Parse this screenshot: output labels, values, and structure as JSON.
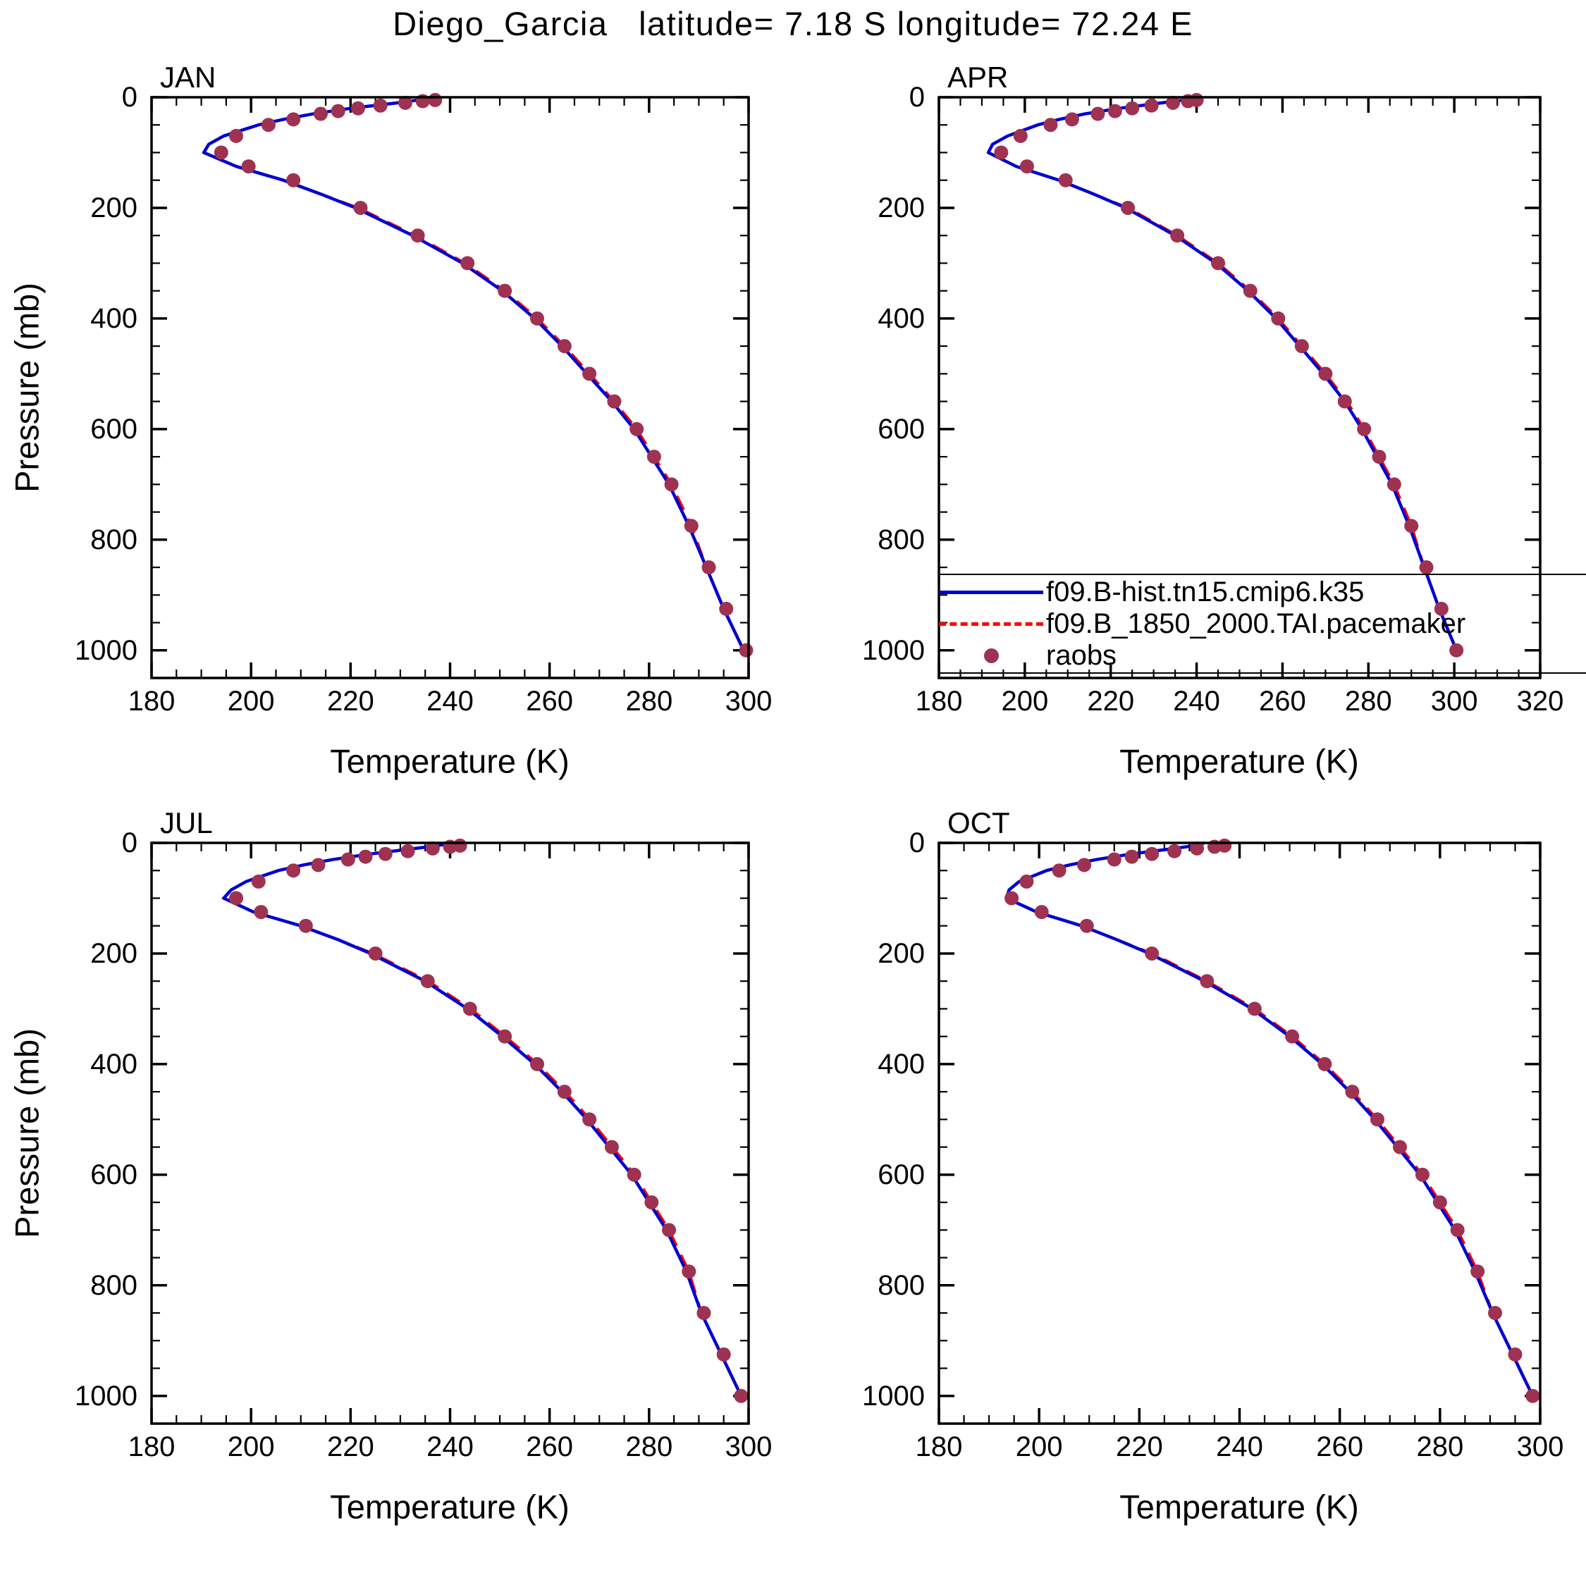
{
  "chart_data": {
    "type": "line",
    "title": "Diego_Garcia   latitude= 7.18 S longitude= 72.24 E",
    "xlabel": "Temperature (K)",
    "ylabel": "Pressure (mb)",
    "grid": false,
    "y_axis": {
      "min": 0,
      "max": 1050,
      "inverted": true,
      "ticks": [
        0,
        200,
        400,
        600,
        800,
        1000
      ],
      "minor_step": 50
    },
    "x_minor_step": 5,
    "colors": {
      "model": "#0000d0",
      "pacemaker": "#ff0000",
      "raobs": "#9e3250",
      "axis": "#000000"
    },
    "legend": {
      "position": "inside-apr-panel-bottom",
      "entries": [
        {
          "id": "model",
          "label": "f09.B-hist.tn15.cmip6.k35",
          "style": "solid-line",
          "color": "#0000d0"
        },
        {
          "id": "pacemaker",
          "label": "f09.B_1850_2000.TAI.pacemaker",
          "style": "dashed-line",
          "color": "#ff0000"
        },
        {
          "id": "raobs",
          "label": "raobs",
          "style": "filled-circle",
          "color": "#9e3250"
        }
      ]
    },
    "panels": [
      {
        "label": "JAN",
        "xlim": [
          180,
          300
        ],
        "xticks": [
          180,
          200,
          220,
          240,
          260,
          280,
          300
        ],
        "series": {
          "model": {
            "pressure": [
              0,
              5,
              10,
              20,
              30,
              40,
              50,
              70,
              85,
              100,
              125,
              150,
              175,
              200,
              250,
              300,
              350,
              400,
              450,
              500,
              550,
              600,
              650,
              700,
              775,
              850,
              925,
              1000
            ],
            "temperature": [
              235.5,
              233.5,
              229.5,
              220,
              212.5,
              206.5,
              201.5,
              194.5,
              191.5,
              190.5,
              197,
              206.5,
              214,
              221,
              232.5,
              242.5,
              250.5,
              257,
              262.5,
              267.5,
              272.5,
              277,
              280.5,
              284,
              288,
              291.5,
              295,
              299
            ]
          },
          "pacemaker": {
            "pressure": [
              0,
              5,
              10,
              20,
              30,
              40,
              50,
              70,
              85,
              100,
              125,
              150,
              175,
              200,
              250,
              300,
              350,
              400,
              450,
              500,
              550,
              600,
              650,
              700,
              775,
              850,
              925,
              1000
            ],
            "temperature": [
              235.5,
              233.5,
              229.5,
              220,
              212.5,
              206.5,
              201.5,
              194.5,
              191.5,
              190.5,
              197,
              206.5,
              214,
              221.5,
              233,
              243,
              251,
              257.5,
              263,
              268,
              273,
              277.5,
              281,
              284.5,
              288.5,
              291.5,
              295,
              299
            ]
          },
          "raobs": {
            "pressure": [
              5,
              7,
              10,
              15,
              20,
              25,
              30,
              40,
              50,
              70,
              100,
              125,
              150,
              200,
              250,
              300,
              350,
              400,
              450,
              500,
              550,
              600,
              650,
              700,
              775,
              850,
              925,
              1000
            ],
            "temperature": [
              237,
              234.5,
              231,
              226,
              221.5,
              217.5,
              214,
              208.5,
              203.5,
              197,
              194,
              199.5,
              208.5,
              222,
              233.5,
              243.5,
              251,
              257.5,
              263,
              268,
              273,
              277.5,
              281,
              284.5,
              288.5,
              292,
              295.5,
              299.5
            ]
          }
        }
      },
      {
        "label": "APR",
        "xlim": [
          180,
          320
        ],
        "xticks": [
          180,
          200,
          220,
          240,
          260,
          280,
          300,
          320
        ],
        "series": {
          "model": {
            "pressure": [
              0,
              5,
              10,
              20,
              30,
              40,
              50,
              70,
              85,
              100,
              125,
              150,
              175,
              200,
              250,
              300,
              350,
              400,
              450,
              500,
              550,
              600,
              650,
              700,
              775,
              850,
              925,
              1000
            ],
            "temperature": [
              240,
              237,
              232,
              222,
              214,
              208,
              203,
              196,
              192.5,
              191.5,
              198,
              208,
              216,
              223.5,
              235,
              244.5,
              252,
              258.5,
              264,
              269.5,
              274.5,
              278.5,
              282,
              285.5,
              289.5,
              293,
              296.5,
              300.5
            ]
          },
          "pacemaker": {
            "pressure": [
              0,
              5,
              10,
              20,
              30,
              40,
              50,
              70,
              85,
              100,
              125,
              150,
              175,
              200,
              250,
              300,
              350,
              400,
              450,
              500,
              550,
              600,
              650,
              700,
              775,
              850,
              925,
              1000
            ],
            "temperature": [
              240,
              237,
              232,
              222,
              214,
              208,
              203,
              196,
              192.5,
              191.5,
              198,
              208,
              216,
              224,
              235.5,
              245,
              252.5,
              259,
              264.5,
              270,
              275,
              279,
              282.5,
              286,
              290,
              293,
              296.5,
              300.5
            ]
          },
          "raobs": {
            "pressure": [
              5,
              7,
              10,
              15,
              20,
              25,
              30,
              40,
              50,
              70,
              100,
              125,
              150,
              200,
              250,
              300,
              350,
              400,
              450,
              500,
              550,
              600,
              650,
              700,
              775,
              850,
              925,
              1000
            ],
            "temperature": [
              240,
              238,
              234.5,
              229.5,
              225,
              221,
              217,
              211,
              206,
              199,
              194.5,
              200.5,
              209.5,
              224,
              235.5,
              245,
              252.5,
              259,
              264.5,
              270,
              274.5,
              279,
              282.5,
              286,
              290,
              293.5,
              297,
              300.5
            ]
          }
        }
      },
      {
        "label": "JUL",
        "xlim": [
          180,
          300
        ],
        "xticks": [
          180,
          200,
          220,
          240,
          260,
          280,
          300
        ],
        "series": {
          "model": {
            "pressure": [
              0,
              5,
              10,
              20,
              30,
              40,
              50,
              70,
              85,
              100,
              125,
              150,
              175,
              200,
              250,
              300,
              350,
              400,
              450,
              500,
              550,
              600,
              650,
              700,
              775,
              850,
              925,
              1000
            ],
            "temperature": [
              240.5,
              237.5,
              233,
              224,
              216.5,
              210.5,
              205.5,
              199,
              196,
              194.5,
              200.5,
              210,
              217.5,
              224,
              235,
              243.5,
              250.5,
              257,
              262.5,
              267.5,
              272,
              276.5,
              280,
              283.5,
              287.5,
              290.5,
              294.5,
              298.5
            ]
          },
          "pacemaker": {
            "pressure": [
              0,
              5,
              10,
              20,
              30,
              40,
              50,
              70,
              85,
              100,
              125,
              150,
              175,
              200,
              250,
              300,
              350,
              400,
              450,
              500,
              550,
              600,
              650,
              700,
              775,
              850,
              925,
              1000
            ],
            "temperature": [
              240.5,
              237.5,
              233,
              224,
              216.5,
              210.5,
              205.5,
              199,
              196,
              194.5,
              200.5,
              210,
              217.5,
              224.5,
              235.6,
              244.1,
              251.1,
              257.6,
              263.1,
              268.1,
              272.6,
              277.1,
              280.5,
              284,
              288,
              290.5,
              294.5,
              298.5
            ]
          },
          "raobs": {
            "pressure": [
              5,
              7,
              10,
              15,
              20,
              25,
              30,
              40,
              50,
              70,
              100,
              125,
              150,
              200,
              250,
              300,
              350,
              400,
              450,
              500,
              550,
              600,
              650,
              700,
              775,
              850,
              925,
              1000
            ],
            "temperature": [
              242,
              240,
              236.5,
              231.5,
              227,
              223,
              219.5,
              213.5,
              208.5,
              201.5,
              197,
              202,
              211,
              225,
              235.5,
              244,
              251,
              257.5,
              263,
              268,
              272.5,
              277,
              280.5,
              284,
              288,
              291,
              295,
              298.5
            ]
          }
        }
      },
      {
        "label": "OCT",
        "xlim": [
          180,
          300
        ],
        "xticks": [
          180,
          200,
          220,
          240,
          260,
          280,
          300
        ],
        "series": {
          "model": {
            "pressure": [
              0,
              5,
              10,
              20,
              30,
              40,
              50,
              70,
              85,
              100,
              125,
              150,
              175,
              200,
              250,
              300,
              350,
              400,
              450,
              500,
              550,
              600,
              650,
              700,
              775,
              850,
              925,
              1000
            ],
            "temperature": [
              233,
              231,
              227,
              218.5,
              211.5,
              206,
              201.5,
              196,
              194,
              193.5,
              199.5,
              208.5,
              215.5,
              222,
              233,
              242.5,
              250,
              256.5,
              262,
              267,
              271.5,
              276,
              279.5,
              283,
              287,
              290.5,
              294.5,
              298.5
            ]
          },
          "pacemaker": {
            "pressure": [
              0,
              5,
              10,
              20,
              30,
              40,
              50,
              70,
              85,
              100,
              125,
              150,
              175,
              200,
              250,
              300,
              350,
              400,
              450,
              500,
              550,
              600,
              650,
              700,
              775,
              850,
              925,
              1000
            ],
            "temperature": [
              233,
              231,
              227,
              218.5,
              211.5,
              206,
              201.5,
              196,
              194,
              193.5,
              199.5,
              208.5,
              215.5,
              222.5,
              233.5,
              243,
              250.5,
              257,
              262.5,
              267.5,
              272,
              276.5,
              280,
              283.5,
              287.5,
              290.5,
              294.5,
              298.5
            ]
          },
          "raobs": {
            "pressure": [
              5,
              7,
              10,
              15,
              20,
              25,
              30,
              40,
              50,
              70,
              100,
              125,
              150,
              200,
              250,
              300,
              350,
              400,
              450,
              500,
              550,
              600,
              650,
              700,
              775,
              850,
              925,
              1000
            ],
            "temperature": [
              237,
              235,
              231.5,
              227,
              222.5,
              218.5,
              215,
              209,
              204,
              197.5,
              194.5,
              200.5,
              209.5,
              222.5,
              233.5,
              243,
              250.5,
              257,
              262.5,
              267.5,
              272,
              276.5,
              280,
              283.5,
              287.5,
              291,
              295,
              298.5
            ]
          }
        }
      }
    ]
  }
}
